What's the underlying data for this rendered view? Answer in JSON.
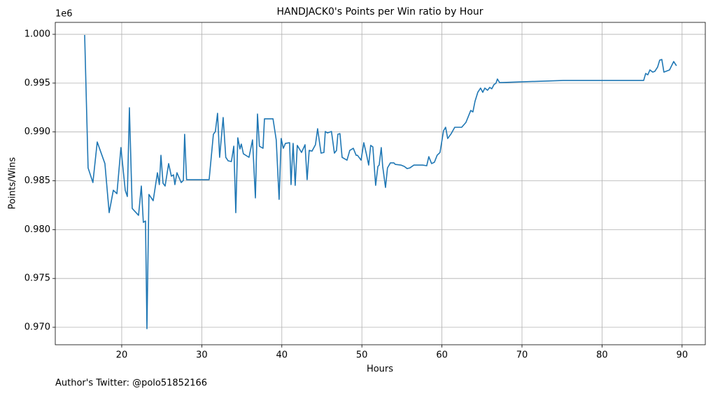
{
  "chart_data": {
    "type": "line",
    "title": "HANDJACK0's Points per Win ratio by Hour",
    "x_label": "Hours",
    "y_label": "Points/Wins",
    "y_offset_label": "1e6",
    "footer": "Author's Twitter: @polo51852166",
    "color": "#1f77b4",
    "grid": true,
    "xlim": [
      11.7,
      92.9
    ],
    "ylim": [
      0.96821,
      1.00122
    ],
    "xticks": [
      20,
      30,
      40,
      50,
      60,
      70,
      80,
      90
    ],
    "yticks": [
      {
        "value": 0.97,
        "label": "0.970"
      },
      {
        "value": 0.975,
        "label": "0.975"
      },
      {
        "value": 0.98,
        "label": "0.980"
      },
      {
        "value": 0.985,
        "label": "0.985"
      },
      {
        "value": 0.99,
        "label": "0.990"
      },
      {
        "value": 0.995,
        "label": "0.995"
      },
      {
        "value": 1,
        "label": "1.000"
      }
    ],
    "x": [
      15.37,
      15.8,
      16.4,
      16.94,
      17.9,
      18.43,
      18.95,
      19.4,
      19.9,
      20.44,
      20.7,
      20.96,
      21.31,
      22.1,
      22.45,
      22.7,
      22.97,
      23.15,
      23.4,
      23.93,
      24.46,
      24.7,
      24.9,
      25.16,
      25.42,
      25.86,
      26.2,
      26.47,
      26.64,
      26.9,
      27.43,
      27.7,
      27.86,
      28.1,
      30.92,
      31.45,
      31.7,
      31.97,
      32.23,
      32.67,
      33.0,
      33.3,
      33.7,
      34.0,
      34.25,
      34.5,
      34.77,
      34.94,
      35.2,
      35.9,
      36.34,
      36.7,
      36.96,
      37.2,
      37.65,
      37.83,
      38.9,
      39.3,
      39.66,
      39.92,
      40.19,
      40.45,
      40.97,
      41.15,
      41.41,
      41.67,
      41.93,
      42.46,
      42.9,
      43.16,
      43.42,
      43.77,
      44.2,
      44.47,
      44.9,
      45.26,
      45.43,
      45.7,
      46.2,
      46.57,
      46.83,
      47.0,
      47.26,
      47.53,
      48.14,
      48.49,
      48.93,
      49.28,
      49.45,
      49.9,
      50.24,
      50.6,
      50.85,
      51.1,
      51.37,
      51.72,
      52.0,
      52.16,
      52.42,
      52.6,
      52.95,
      53.2,
      53.56,
      54.0,
      54.17,
      54.87,
      55.3,
      55.65,
      56.0,
      56.5,
      57.58,
      58.1,
      58.36,
      58.71,
      59.06,
      59.4,
      59.76,
      60.2,
      60.46,
      60.72,
      61.16,
      61.6,
      62.47,
      63.0,
      63.35,
      63.6,
      63.87,
      64.13,
      64.48,
      64.83,
      65.1,
      65.36,
      65.7,
      65.97,
      66.23,
      66.5,
      66.75,
      66.93,
      67.2,
      67.45,
      75.14,
      85.2,
      85.45,
      85.72,
      85.98,
      86.33,
      86.6,
      86.94,
      87.2,
      87.47,
      87.73,
      88.43,
      88.95,
      89.3
    ],
    "values": [
      0.99993,
      0.98632,
      0.98482,
      0.98897,
      0.98676,
      0.98174,
      0.98403,
      0.98368,
      0.9884,
      0.98403,
      0.98339,
      0.99248,
      0.98217,
      0.98146,
      0.98446,
      0.98074,
      0.98088,
      0.96986,
      0.9836,
      0.98296,
      0.98582,
      0.98461,
      0.98761,
      0.98475,
      0.98446,
      0.98676,
      0.98547,
      0.98561,
      0.98461,
      0.98582,
      0.98482,
      0.98504,
      0.98976,
      0.98511,
      0.98511,
      0.98976,
      0.99005,
      0.99191,
      0.9874,
      0.99148,
      0.9874,
      0.98704,
      0.98697,
      0.98854,
      0.98174,
      0.9894,
      0.98826,
      0.98876,
      0.98776,
      0.9874,
      0.98919,
      0.98325,
      0.99184,
      0.98854,
      0.98833,
      0.99134,
      0.99134,
      0.98919,
      0.9831,
      0.98933,
      0.98833,
      0.98883,
      0.9889,
      0.98461,
      0.98883,
      0.98453,
      0.98862,
      0.9879,
      0.98869,
      0.98511,
      0.98811,
      0.98804,
      0.98869,
      0.99033,
      0.98783,
      0.9879,
      0.99005,
      0.9899,
      0.99005,
      0.98783,
      0.98811,
      0.98976,
      0.98983,
      0.9874,
      0.98711,
      0.98811,
      0.98833,
      0.98761,
      0.98761,
      0.98711,
      0.9889,
      0.98761,
      0.98661,
      0.98862,
      0.98847,
      0.98453,
      0.98647,
      0.98661,
      0.9884,
      0.98647,
      0.98432,
      0.98632,
      0.98683,
      0.98683,
      0.98668,
      0.98661,
      0.98647,
      0.98625,
      0.98632,
      0.98661,
      0.98661,
      0.98654,
      0.98747,
      0.98676,
      0.9869,
      0.98761,
      0.9879,
      0.99012,
      0.99048,
      0.98933,
      0.98983,
      0.99048,
      0.99048,
      0.99098,
      0.99169,
      0.9922,
      0.99205,
      0.99313,
      0.99406,
      0.99449,
      0.99406,
      0.99449,
      0.99427,
      0.99456,
      0.99442,
      0.99485,
      0.99499,
      0.99542,
      0.99506,
      0.99506,
      0.99527,
      0.99527,
      0.99599,
      0.99585,
      0.99635,
      0.99613,
      0.99621,
      0.99664,
      0.99735,
      0.99742,
      0.99613,
      0.99635,
      0.99721,
      0.99678
    ]
  }
}
